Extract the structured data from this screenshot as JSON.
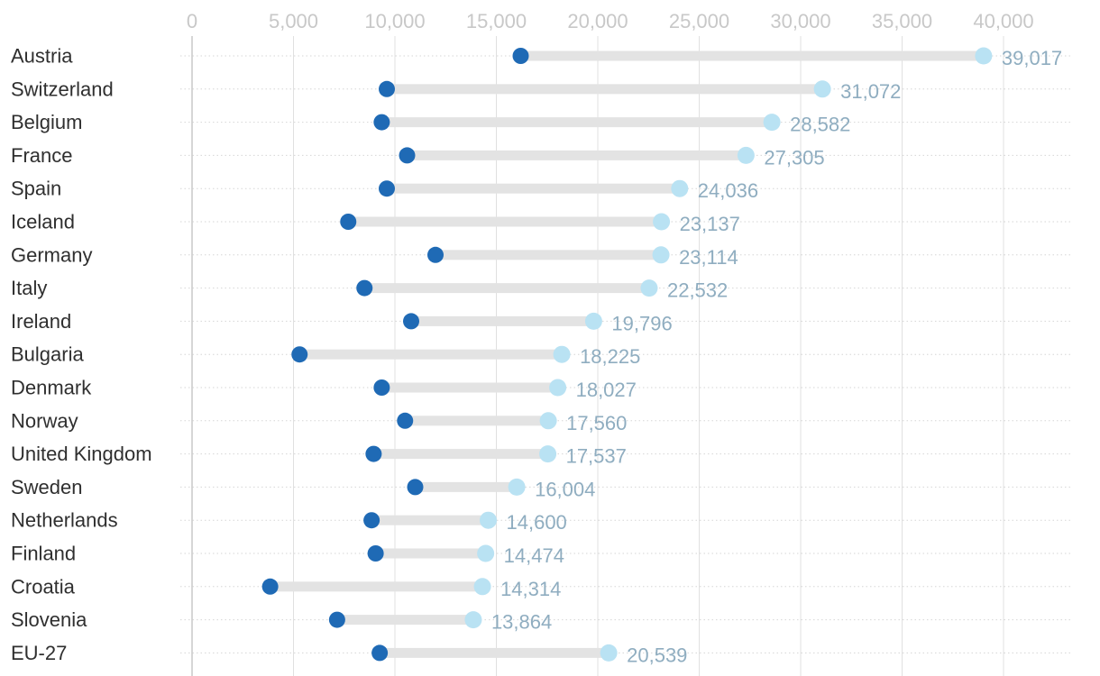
{
  "chart_data": {
    "type": "dumbbell",
    "title": "",
    "xlabel": "",
    "ylabel": "",
    "xlim": [
      0,
      40000
    ],
    "ticks": [
      0,
      5000,
      10000,
      15000,
      20000,
      25000,
      30000,
      35000,
      40000
    ],
    "tick_labels": [
      "0",
      "5,000",
      "10,000",
      "15,000",
      "20,000",
      "25,000",
      "30,000",
      "35,000",
      "40,000"
    ],
    "grid": true,
    "colors": {
      "start_dot": "#1f6ab5",
      "end_dot": "#b9e2f3",
      "bar": "#e3e3e3",
      "grid": "#e0e0e0",
      "value_label": "#8fadc0",
      "category_label": "#2f2f2f",
      "tick_label": "#c8c8c8"
    },
    "series": [
      {
        "name": "start",
        "color": "#1f6ab5"
      },
      {
        "name": "end",
        "color": "#b9e2f3"
      }
    ],
    "rows": [
      {
        "category": "Austria",
        "start": 16200,
        "end": 39017,
        "label": "39,017"
      },
      {
        "category": "Switzerland",
        "start": 9600,
        "end": 31072,
        "label": "31,072"
      },
      {
        "category": "Belgium",
        "start": 9350,
        "end": 28582,
        "label": "28,582"
      },
      {
        "category": "France",
        "start": 10600,
        "end": 27305,
        "label": "27,305"
      },
      {
        "category": "Spain",
        "start": 9600,
        "end": 24036,
        "label": "24,036"
      },
      {
        "category": "Iceland",
        "start": 7700,
        "end": 23137,
        "label": "23,137"
      },
      {
        "category": "Germany",
        "start": 12000,
        "end": 23114,
        "label": "23,114"
      },
      {
        "category": "Italy",
        "start": 8500,
        "end": 22532,
        "label": "22,532"
      },
      {
        "category": "Ireland",
        "start": 10800,
        "end": 19796,
        "label": "19,796"
      },
      {
        "category": "Bulgaria",
        "start": 5300,
        "end": 18225,
        "label": "18,225"
      },
      {
        "category": "Denmark",
        "start": 9350,
        "end": 18027,
        "label": "18,027"
      },
      {
        "category": "Norway",
        "start": 10500,
        "end": 17560,
        "label": "17,560"
      },
      {
        "category": "United Kingdom",
        "start": 8950,
        "end": 17537,
        "label": "17,537"
      },
      {
        "category": "Sweden",
        "start": 11000,
        "end": 16004,
        "label": "16,004"
      },
      {
        "category": "Netherlands",
        "start": 8850,
        "end": 14600,
        "label": "14,600"
      },
      {
        "category": "Finland",
        "start": 9050,
        "end": 14474,
        "label": "14,474"
      },
      {
        "category": "Croatia",
        "start": 3850,
        "end": 14314,
        "label": "14,314"
      },
      {
        "category": "Slovenia",
        "start": 7150,
        "end": 13864,
        "label": "13,864"
      },
      {
        "category": "EU-27",
        "start": 9250,
        "end": 20539,
        "label": "20,539"
      }
    ]
  }
}
